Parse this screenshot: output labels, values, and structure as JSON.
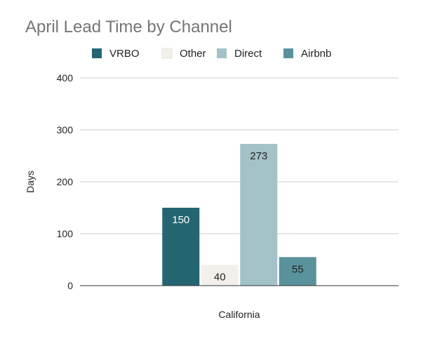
{
  "chart_data": {
    "type": "bar",
    "title": "April Lead Time by Channel",
    "xlabel": "",
    "ylabel": "Days",
    "categories": [
      "California"
    ],
    "ylim": [
      0,
      400
    ],
    "yticks": [
      0,
      100,
      200,
      300,
      400
    ],
    "grid": true,
    "legend_position": "top",
    "series": [
      {
        "name": "VRBO",
        "values": [
          150
        ],
        "color": "#236672",
        "label_color": "#ffffff"
      },
      {
        "name": "Other",
        "values": [
          40
        ],
        "color": "#f3f0eb",
        "label_color": "#222222"
      },
      {
        "name": "Direct",
        "values": [
          273
        ],
        "color": "#a2c2c8",
        "label_color": "#222222"
      },
      {
        "name": "Airbnb",
        "values": [
          55
        ],
        "color": "#5a929c",
        "label_color": "#222222"
      }
    ]
  }
}
